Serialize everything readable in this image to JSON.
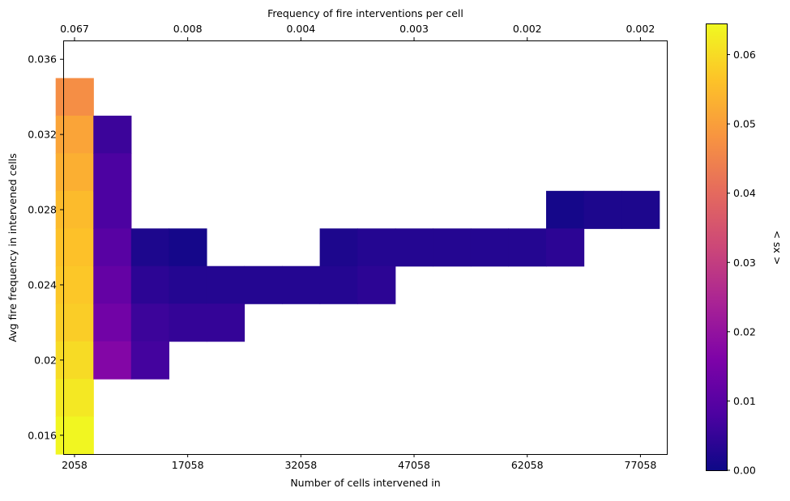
{
  "chart_data": {
    "type": "heatmap",
    "xlabel": "Number of cells intervened in",
    "ylabel": "Avg fire frequency in intervened cells",
    "top_xlabel": "Frequency of fire interventions per cell",
    "colorbar_label": "< sx >",
    "colormap": "plasma",
    "x_tick_labels": [
      "2058",
      "17058",
      "32058",
      "47058",
      "62058",
      "77058"
    ],
    "x_tick_values": [
      2058,
      17058,
      32058,
      47058,
      62058,
      77058
    ],
    "top_tick_labels": [
      "0.067",
      "0.008",
      "0.004",
      "0.003",
      "0.002",
      "0.002"
    ],
    "y_tick_labels": [
      "0.036",
      "0.032",
      "0.028",
      "0.024",
      "0.02",
      "0.016"
    ],
    "y_tick_values": [
      0.036,
      0.032,
      0.028,
      0.024,
      0.02,
      0.016
    ],
    "colorbar_tick_labels": [
      "0.00",
      "0.01",
      "0.02",
      "0.03",
      "0.04",
      "0.05",
      "0.06"
    ],
    "colorbar_tick_values": [
      0,
      0.01,
      0.02,
      0.03,
      0.04,
      0.05,
      0.06
    ],
    "xlim": [
      558,
      80558
    ],
    "ylim": [
      0.015,
      0.037
    ],
    "vlim": [
      0,
      0.0645
    ],
    "cell_width": 5000,
    "cell_height": 0.002,
    "cells": [
      {
        "x": 2058,
        "y": 0.034,
        "value": 0.047
      },
      {
        "x": 2058,
        "y": 0.032,
        "value": 0.051
      },
      {
        "x": 2058,
        "y": 0.03,
        "value": 0.053
      },
      {
        "x": 2058,
        "y": 0.028,
        "value": 0.055
      },
      {
        "x": 2058,
        "y": 0.026,
        "value": 0.056
      },
      {
        "x": 2058,
        "y": 0.024,
        "value": 0.057
      },
      {
        "x": 2058,
        "y": 0.022,
        "value": 0.058
      },
      {
        "x": 2058,
        "y": 0.02,
        "value": 0.06
      },
      {
        "x": 2058,
        "y": 0.018,
        "value": 0.062
      },
      {
        "x": 2058,
        "y": 0.016,
        "value": 0.064
      },
      {
        "x": 7058,
        "y": 0.032,
        "value": 0.006
      },
      {
        "x": 7058,
        "y": 0.03,
        "value": 0.008
      },
      {
        "x": 7058,
        "y": 0.028,
        "value": 0.008
      },
      {
        "x": 7058,
        "y": 0.026,
        "value": 0.01
      },
      {
        "x": 7058,
        "y": 0.024,
        "value": 0.012
      },
      {
        "x": 7058,
        "y": 0.022,
        "value": 0.014
      },
      {
        "x": 7058,
        "y": 0.02,
        "value": 0.017
      },
      {
        "x": 12058,
        "y": 0.026,
        "value": 0.002
      },
      {
        "x": 12058,
        "y": 0.024,
        "value": 0.004
      },
      {
        "x": 12058,
        "y": 0.022,
        "value": 0.006
      },
      {
        "x": 12058,
        "y": 0.02,
        "value": 0.007
      },
      {
        "x": 17058,
        "y": 0.026,
        "value": 0.001
      },
      {
        "x": 17058,
        "y": 0.024,
        "value": 0.003
      },
      {
        "x": 17058,
        "y": 0.022,
        "value": 0.005
      },
      {
        "x": 22058,
        "y": 0.024,
        "value": 0.003
      },
      {
        "x": 22058,
        "y": 0.022,
        "value": 0.005
      },
      {
        "x": 27058,
        "y": 0.024,
        "value": 0.003
      },
      {
        "x": 32058,
        "y": 0.024,
        "value": 0.003
      },
      {
        "x": 37058,
        "y": 0.026,
        "value": 0.002
      },
      {
        "x": 37058,
        "y": 0.024,
        "value": 0.003
      },
      {
        "x": 42058,
        "y": 0.026,
        "value": 0.003
      },
      {
        "x": 42058,
        "y": 0.024,
        "value": 0.004
      },
      {
        "x": 47058,
        "y": 0.026,
        "value": 0.003
      },
      {
        "x": 52058,
        "y": 0.026,
        "value": 0.003
      },
      {
        "x": 57058,
        "y": 0.026,
        "value": 0.003
      },
      {
        "x": 62058,
        "y": 0.026,
        "value": 0.003
      },
      {
        "x": 67058,
        "y": 0.028,
        "value": 0.001
      },
      {
        "x": 67058,
        "y": 0.026,
        "value": 0.004
      },
      {
        "x": 72058,
        "y": 0.028,
        "value": 0.002
      },
      {
        "x": 77058,
        "y": 0.028,
        "value": 0.002
      }
    ]
  }
}
